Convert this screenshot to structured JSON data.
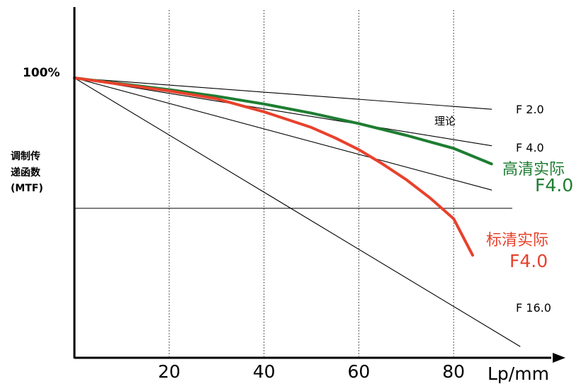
{
  "chart_data": {
    "type": "line",
    "title": "",
    "ylabel_lines": [
      "调制传",
      "递函数",
      "(MTF)"
    ],
    "xlabel": "Lp/mm",
    "y_tick_label": "100%",
    "x_ticks": [
      20,
      40,
      60,
      80
    ],
    "xlim": [
      0,
      100
    ],
    "ylim": [
      0,
      1.2
    ],
    "grid_vertical_dashed": true,
    "reference_line_y": 0.5,
    "theory_label": "理论",
    "series": [
      {
        "name": "F 2.0",
        "kind": "theory",
        "color": "#000000",
        "x": [
          0,
          88
        ],
        "y": [
          1.0,
          0.88
        ]
      },
      {
        "name": "F 4.0",
        "kind": "theory",
        "color": "#000000",
        "x": [
          0,
          88
        ],
        "y": [
          1.0,
          0.74
        ]
      },
      {
        "name": "",
        "kind": "theory",
        "color": "#000000",
        "x": [
          0,
          88
        ],
        "y": [
          1.0,
          0.57
        ]
      },
      {
        "name": "F 16.0",
        "kind": "theory",
        "color": "#000000",
        "x": [
          0,
          94
        ],
        "y": [
          1.0,
          -0.03
        ]
      },
      {
        "name_lines": [
          "高清实际",
          "F4.0"
        ],
        "kind": "actual",
        "color": "#1e7d32",
        "x": [
          0,
          20,
          30,
          40,
          50,
          60,
          70,
          80,
          88
        ],
        "y": [
          1.0,
          0.955,
          0.93,
          0.9,
          0.865,
          0.825,
          0.78,
          0.73,
          0.67
        ]
      },
      {
        "name_lines": [
          "标清实际",
          "F4.0"
        ],
        "kind": "actual",
        "color": "#e8412c",
        "x": [
          0,
          20,
          30,
          40,
          50,
          55,
          60,
          65,
          70,
          75,
          80,
          84
        ],
        "y": [
          1.0,
          0.95,
          0.92,
          0.87,
          0.81,
          0.77,
          0.725,
          0.67,
          0.61,
          0.54,
          0.46,
          0.32
        ]
      }
    ]
  }
}
